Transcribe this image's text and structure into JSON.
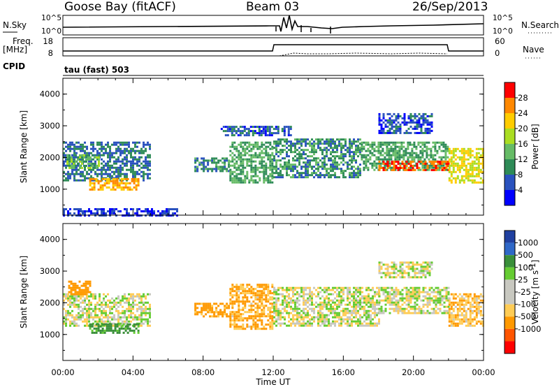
{
  "header": {
    "station": "Goose Bay (fitACF)",
    "beam": "Beam 03",
    "date": "26/Sep/2013"
  },
  "param_panels": {
    "nsky_label": "N.Sky",
    "nsearch_label": "N.Search",
    "nsky_ticks": [
      "10^5",
      "10^0"
    ],
    "nsearch_ticks": [
      "10^5",
      "10^0"
    ],
    "freq_label_1": "Freq.",
    "freq_label_2": "[MHz]",
    "freq_ticks": [
      "18",
      "8"
    ],
    "nave_label": "Nave",
    "nave_ticks": [
      "60",
      "0"
    ],
    "cpid_label": "CPID",
    "cpid_value": "tau (fast) 503"
  },
  "colorbars": {
    "power": {
      "label": "Power [dB]",
      "ticks": [
        "28",
        "24",
        "20",
        "16",
        "12",
        "8",
        "4"
      ],
      "colors": [
        "#0000ff",
        "#2a52be",
        "#2e8b57",
        "#66bb66",
        "#aadd22",
        "#ffcc00",
        "#ff8800",
        "#ff0000"
      ]
    },
    "velocity": {
      "label_main": "Velocity [m s",
      "label_sup": "-1",
      "label_end": "]",
      "ticks": [
        "1000",
        "500",
        "100",
        "25",
        "-25",
        "-100",
        "-500",
        "-1000"
      ],
      "colors": [
        "#ff0000",
        "#ff5500",
        "#ff9900",
        "#ffcc55",
        "#c8c8c0",
        "#c8c8c0",
        "#66cc33",
        "#3a8f3a",
        "#2f68c8",
        "#2040a0"
      ]
    }
  },
  "chart_data": [
    {
      "type": "heatmap",
      "name": "power",
      "ylabel": "Slant Range [km]",
      "xlim": [
        "00:00",
        "24:00"
      ],
      "ylim": [
        180,
        4500
      ],
      "yticks": [
        1000,
        2000,
        3000,
        4000
      ],
      "xticks": [
        "00:00",
        "04:00",
        "08:00",
        "12:00",
        "16:00",
        "20:00",
        "00:00"
      ],
      "colorbar_range_db": [
        0,
        32
      ],
      "regions": [
        {
          "t_start": 0.0,
          "t_end": 5.0,
          "range_low": 1300,
          "range_high": 2500,
          "value_db": 8
        },
        {
          "t_start": 1.5,
          "t_end": 4.3,
          "range_low": 1000,
          "range_high": 1350,
          "value_db": 24
        },
        {
          "t_start": 0.2,
          "t_end": 2.0,
          "range_low": 1700,
          "range_high": 2100,
          "value_db": 14
        },
        {
          "t_start": 7.5,
          "t_end": 9.5,
          "range_low": 1600,
          "range_high": 2000,
          "value_db": 10
        },
        {
          "t_start": 9.5,
          "t_end": 12.0,
          "range_low": 1200,
          "range_high": 2500,
          "value_db": 12
        },
        {
          "t_start": 12.0,
          "t_end": 17.0,
          "range_low": 1400,
          "range_high": 2600,
          "value_db": 10
        },
        {
          "t_start": 17.0,
          "t_end": 22.0,
          "range_low": 1600,
          "range_high": 2500,
          "value_db": 12
        },
        {
          "t_start": 18.0,
          "t_end": 22.0,
          "range_low": 1600,
          "range_high": 1900,
          "value_db": 28
        },
        {
          "t_start": 22.0,
          "t_end": 24.0,
          "range_low": 1200,
          "range_high": 2300,
          "value_db": 20
        },
        {
          "t_start": 18.0,
          "t_end": 21.0,
          "range_low": 2800,
          "range_high": 3400,
          "value_db": 6
        },
        {
          "t_start": 0.0,
          "t_end": 6.5,
          "range_low": 200,
          "range_high": 400,
          "value_db": 4
        },
        {
          "t_start": 9.0,
          "t_end": 13.0,
          "range_low": 2700,
          "range_high": 3000,
          "value_db": 6
        }
      ]
    },
    {
      "type": "heatmap",
      "name": "velocity",
      "ylabel": "Slant Range [km]",
      "xlabel": "Time UT",
      "xlim": [
        "00:00",
        "24:00"
      ],
      "ylim": [
        180,
        4500
      ],
      "yticks": [
        1000,
        2000,
        3000,
        4000
      ],
      "xticks": [
        "00:00",
        "04:00",
        "08:00",
        "12:00",
        "16:00",
        "20:00",
        "00:00"
      ],
      "colorbar_range": [
        -1000,
        1000
      ],
      "regions": [
        {
          "t_start": 0.0,
          "t_end": 5.0,
          "range_low": 1300,
          "range_high": 2300,
          "velocity": 0
        },
        {
          "t_start": 1.5,
          "t_end": 4.3,
          "range_low": 1050,
          "range_high": 1350,
          "velocity": 150
        },
        {
          "t_start": 0.3,
          "t_end": 1.5,
          "range_low": 2300,
          "range_high": 2700,
          "velocity": -300
        },
        {
          "t_start": 7.5,
          "t_end": 9.5,
          "range_low": 1600,
          "range_high": 2000,
          "velocity": -150
        },
        {
          "t_start": 9.5,
          "t_end": 12.0,
          "range_low": 1200,
          "range_high": 2600,
          "velocity": -100
        },
        {
          "t_start": 12.0,
          "t_end": 18.0,
          "range_low": 1300,
          "range_high": 2500,
          "velocity": 0
        },
        {
          "t_start": 18.0,
          "t_end": 22.0,
          "range_low": 1700,
          "range_high": 2500,
          "velocity": 0
        },
        {
          "t_start": 18.0,
          "t_end": 21.0,
          "range_low": 2800,
          "range_high": 3300,
          "velocity": 0
        },
        {
          "t_start": 22.0,
          "t_end": 24.0,
          "range_low": 1300,
          "range_high": 2300,
          "velocity": -80
        }
      ]
    }
  ]
}
